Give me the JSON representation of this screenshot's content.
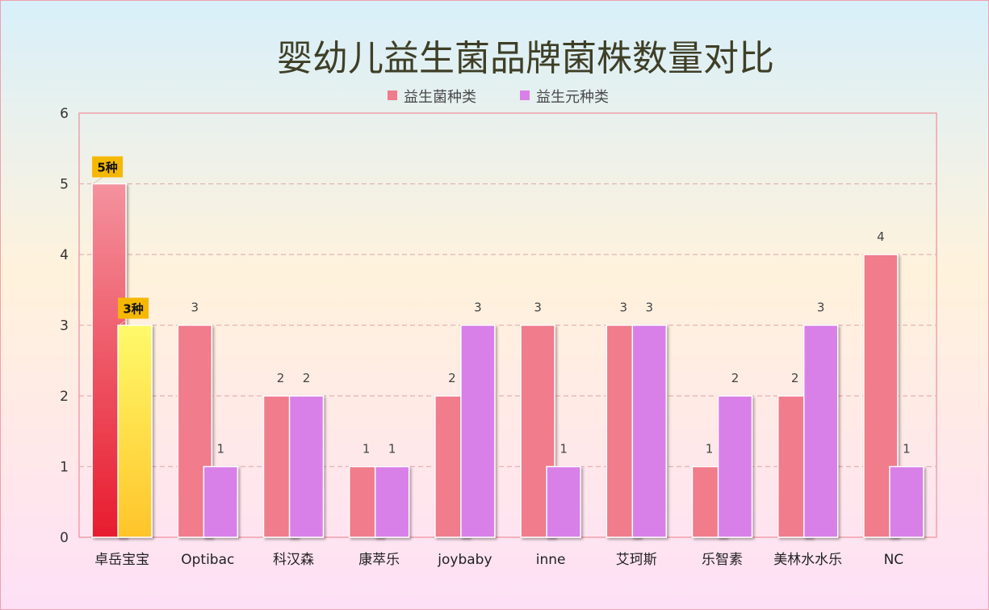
{
  "chart_data": {
    "type": "bar",
    "title": "婴幼儿益生菌品牌菌株数量对比",
    "categories": [
      "卓岳宝宝",
      "Optibac",
      "科汉森",
      "康萃乐",
      "joybaby",
      "inne",
      "艾珂斯",
      "乐智素",
      "美林水水乐",
      "NC"
    ],
    "series": [
      {
        "name": "益生菌种类",
        "values": [
          5,
          3,
          2,
          1,
          2,
          3,
          3,
          1,
          2,
          4
        ],
        "color": "#f07b8c"
      },
      {
        "name": "益生元种类",
        "values": [
          3,
          1,
          2,
          1,
          3,
          1,
          3,
          2,
          3,
          1
        ],
        "color": "#d880e8"
      }
    ],
    "highlight": {
      "category_index": 0,
      "labels": [
        "5种",
        "3种"
      ],
      "badge_color": "#f5b800"
    },
    "ylim": [
      0,
      6
    ],
    "yticks": [
      0,
      1,
      2,
      3,
      4,
      5,
      6
    ],
    "grid": true,
    "legend_position": "top-center"
  }
}
